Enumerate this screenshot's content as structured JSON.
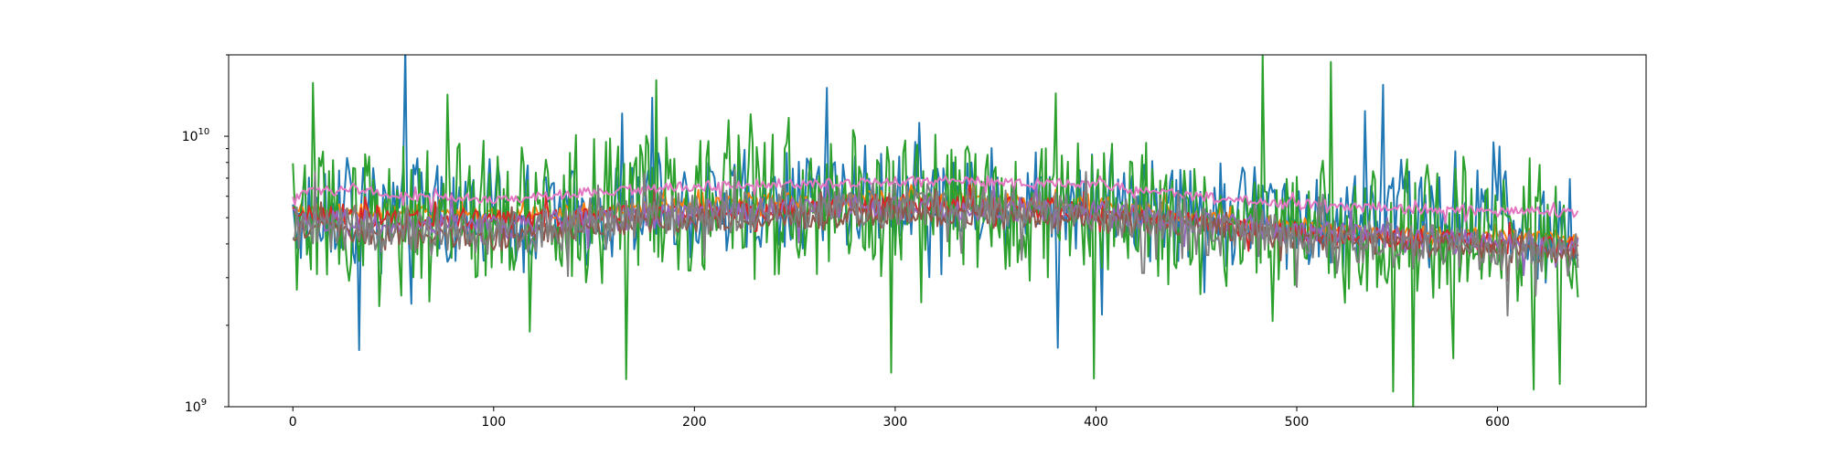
{
  "chart_data": {
    "type": "line",
    "title": "",
    "xlabel": "",
    "ylabel": "",
    "xlim": [
      -32,
      674
    ],
    "ylim": [
      1000000000,
      20000000000
    ],
    "yscale": "log",
    "grid": false,
    "legend": "none",
    "x_ticks": [
      {
        "value": 0,
        "label": "0"
      },
      {
        "value": 100,
        "label": "100"
      },
      {
        "value": 200,
        "label": "200"
      },
      {
        "value": 300,
        "label": "300"
      },
      {
        "value": 400,
        "label": "400"
      },
      {
        "value": 500,
        "label": "500"
      },
      {
        "value": 600,
        "label": "600"
      }
    ],
    "y_ticks": [
      {
        "value": 1000000000,
        "base": "10",
        "exp": "9"
      },
      {
        "value": 10000000000,
        "base": "10",
        "exp": "10"
      }
    ],
    "x_range": [
      0,
      640
    ],
    "series": [
      {
        "color": "#1f77b4",
        "noise": 0.4,
        "x": [
          0,
          20,
          40,
          60,
          80,
          100,
          120,
          150,
          180,
          200,
          220,
          250,
          280,
          300,
          330,
          360,
          400,
          440,
          480,
          520,
          556,
          580,
          610,
          640
        ],
        "y": [
          5000000000.0,
          5600000000.0,
          5300000000.0,
          5600000000.0,
          5100000000.0,
          5300000000.0,
          5000000000.0,
          5300000000.0,
          5500000000.0,
          5600000000.0,
          5700000000.0,
          5800000000.0,
          6000000000.0,
          5900000000.0,
          5800000000.0,
          5800000000.0,
          5900000000.0,
          5400000000.0,
          5100000000.0,
          5200000000.0,
          5400000000.0,
          5000000000.0,
          4700000000.0,
          4900000000.0
        ]
      },
      {
        "color": "#ff7f0e",
        "noise": 0.06,
        "x": [
          0,
          30,
          60,
          100,
          150,
          200,
          250,
          300,
          350,
          400,
          450,
          500,
          550,
          600,
          640
        ],
        "y": [
          5300000000.0,
          5300000000.0,
          5200000000.0,
          5100000000.0,
          5300000000.0,
          5600000000.0,
          5800000000.0,
          5900000000.0,
          5800000000.0,
          5600000000.0,
          5000000000.0,
          4600000000.0,
          4400000000.0,
          4300000000.0,
          4200000000.0
        ]
      },
      {
        "color": "#2ca02c",
        "noise": 0.55,
        "x": [
          0,
          20,
          40,
          60,
          80,
          100,
          120,
          150,
          200,
          250,
          300,
          350,
          400,
          450,
          500,
          550,
          600,
          640
        ],
        "y": [
          5000000000.0,
          5500000000.0,
          5600000000.0,
          5300000000.0,
          5000000000.0,
          5200000000.0,
          5100000000.0,
          5500000000.0,
          5600000000.0,
          5700000000.0,
          5900000000.0,
          5800000000.0,
          5500000000.0,
          5000000000.0,
          4800000000.0,
          4600000000.0,
          4300000000.0,
          4200000000.0
        ]
      },
      {
        "color": "#d62728",
        "noise": 0.08,
        "x": [
          0,
          30,
          60,
          100,
          150,
          200,
          250,
          300,
          350,
          400,
          450,
          500,
          550,
          600,
          640
        ],
        "y": [
          5200000000.0,
          5100000000.0,
          5000000000.0,
          4900000000.0,
          5100000000.0,
          5300000000.0,
          5400000000.0,
          5600000000.0,
          5500000000.0,
          5300000000.0,
          4800000000.0,
          4400000000.0,
          4200000000.0,
          4000000000.0,
          3900000000.0
        ]
      },
      {
        "color": "#9467bd",
        "noise": 0.1,
        "x": [
          0,
          30,
          60,
          100,
          150,
          200,
          250,
          300,
          350,
          400,
          450,
          500,
          550,
          600,
          640
        ],
        "y": [
          4900000000.0,
          4800000000.0,
          4700000000.0,
          4600000000.0,
          5000000000.0,
          5200000000.0,
          5400000000.0,
          5500000000.0,
          5400000000.0,
          5200000000.0,
          4800000000.0,
          4400000000.0,
          4200000000.0,
          4000000000.0,
          3800000000.0
        ]
      },
      {
        "color": "#8c564b",
        "noise": 0.09,
        "x": [
          0,
          30,
          60,
          100,
          150,
          200,
          250,
          300,
          350,
          400,
          450,
          500,
          550,
          600,
          640
        ],
        "y": [
          4500000000.0,
          4400000000.0,
          4300000000.0,
          4200000000.0,
          4600000000.0,
          4900000000.0,
          5000000000.0,
          5100000000.0,
          5100000000.0,
          4900000000.0,
          4600000000.0,
          4200000000.0,
          4000000000.0,
          3800000000.0,
          3600000000.0
        ]
      },
      {
        "color": "#e377c2",
        "noise": 0.04,
        "x": [
          0,
          30,
          60,
          100,
          150,
          200,
          250,
          300,
          350,
          400,
          450,
          500,
          550,
          600,
          640
        ],
        "y": [
          6100000000.0,
          6400000000.0,
          6000000000.0,
          5800000000.0,
          6200000000.0,
          6500000000.0,
          6700000000.0,
          6800000000.0,
          6800000000.0,
          6600000000.0,
          6000000000.0,
          5600000000.0,
          5400000000.0,
          5300000000.0,
          5200000000.0
        ]
      },
      {
        "color": "#7f7f7f",
        "noise": 0.18,
        "x": [
          0,
          30,
          60,
          100,
          150,
          200,
          250,
          300,
          350,
          400,
          450,
          500,
          550,
          600,
          640
        ],
        "y": [
          4800000000.0,
          4600000000.0,
          4500000000.0,
          4300000000.0,
          4800000000.0,
          5200000000.0,
          5400000000.0,
          5500000000.0,
          5500000000.0,
          5200000000.0,
          4500000000.0,
          4200000000.0,
          4000000000.0,
          3700000000.0,
          3600000000.0
        ]
      }
    ]
  }
}
